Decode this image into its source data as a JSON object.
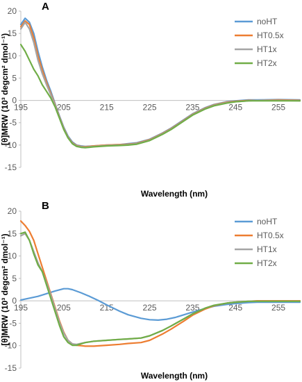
{
  "figure": {
    "panels": [
      "A",
      "B"
    ]
  },
  "chart_data": [
    {
      "type": "line",
      "panel_label": "A",
      "xlabel": "Wavelength (nm)",
      "ylabel": "[θ]MRW (10³ degcm² dmol⁻¹)",
      "xlim": [
        195,
        260
      ],
      "ylim": [
        -15,
        20
      ],
      "x_ticks": [
        195,
        205,
        215,
        225,
        235,
        245,
        255
      ],
      "y_ticks": [
        20,
        15,
        10,
        5,
        0,
        -5,
        -10,
        -15
      ],
      "grid": false,
      "legend_position": "top-right",
      "series": [
        {
          "name": "noHT",
          "color": "#5B9BD5",
          "x": [
            195,
            196,
            197,
            198,
            199,
            200,
            201,
            202,
            203,
            204,
            205,
            206,
            207,
            208,
            209,
            210,
            212,
            215,
            218,
            220,
            222,
            225,
            228,
            230,
            233,
            235,
            238,
            240,
            243,
            245,
            248,
            250,
            255,
            260
          ],
          "y": [
            17.0,
            18.4,
            17.5,
            15.0,
            11.0,
            7.5,
            4.5,
            2.0,
            -0.8,
            -3.5,
            -6.0,
            -8.0,
            -9.3,
            -10.0,
            -10.2,
            -10.3,
            -10.2,
            -10.0,
            -9.9,
            -9.7,
            -9.5,
            -8.7,
            -7.3,
            -6.2,
            -4.3,
            -3.0,
            -1.6,
            -0.9,
            -0.3,
            -0.1,
            0.1,
            0.1,
            0.2,
            0.1
          ]
        },
        {
          "name": "HT0.5x",
          "color": "#ED7D31",
          "x": [
            195,
            196,
            197,
            198,
            199,
            200,
            201,
            202,
            203,
            204,
            205,
            206,
            207,
            208,
            209,
            210,
            212,
            215,
            218,
            220,
            222,
            225,
            228,
            230,
            233,
            235,
            238,
            240,
            243,
            245,
            248,
            250,
            255,
            260
          ],
          "y": [
            16.5,
            17.8,
            17.0,
            14.0,
            10.0,
            6.8,
            4.0,
            1.5,
            -1.0,
            -3.7,
            -6.2,
            -8.2,
            -9.5,
            -10.1,
            -10.3,
            -10.4,
            -10.2,
            -10.0,
            -9.9,
            -9.8,
            -9.6,
            -8.8,
            -7.4,
            -6.3,
            -4.4,
            -3.1,
            -1.7,
            -1.0,
            -0.4,
            -0.2,
            0.0,
            0.0,
            0.1,
            0.0
          ]
        },
        {
          "name": "HT1x",
          "color": "#A5A5A5",
          "x": [
            195,
            196,
            197,
            198,
            199,
            200,
            201,
            202,
            203,
            204,
            205,
            206,
            207,
            208,
            209,
            210,
            212,
            215,
            218,
            220,
            222,
            225,
            228,
            230,
            233,
            235,
            238,
            240,
            243,
            245,
            248,
            250,
            255,
            260
          ],
          "y": [
            16.0,
            17.5,
            16.0,
            13.0,
            9.0,
            6.0,
            3.5,
            1.2,
            -1.2,
            -3.8,
            -6.3,
            -8.3,
            -9.6,
            -10.2,
            -10.4,
            -10.5,
            -10.3,
            -10.1,
            -10.0,
            -9.9,
            -9.7,
            -8.9,
            -7.5,
            -6.4,
            -4.5,
            -3.2,
            -1.8,
            -1.1,
            -0.5,
            -0.3,
            -0.1,
            0.0,
            0.0,
            -0.1
          ]
        },
        {
          "name": "HT2x",
          "color": "#70AD47",
          "x": [
            195,
            196,
            197,
            198,
            199,
            200,
            201,
            202,
            203,
            204,
            205,
            206,
            207,
            208,
            209,
            210,
            212,
            215,
            218,
            220,
            222,
            225,
            228,
            230,
            233,
            235,
            238,
            240,
            243,
            245,
            248,
            250,
            255,
            260
          ],
          "y": [
            12.5,
            11.0,
            9.0,
            7.0,
            5.5,
            3.5,
            2.0,
            0.5,
            -1.5,
            -4.0,
            -6.5,
            -8.4,
            -9.7,
            -10.3,
            -10.5,
            -10.6,
            -10.4,
            -10.2,
            -10.1,
            -10.0,
            -9.8,
            -9.0,
            -7.6,
            -6.5,
            -4.6,
            -3.3,
            -1.9,
            -1.2,
            -0.6,
            -0.3,
            -0.1,
            -0.1,
            -0.1,
            -0.1
          ]
        }
      ]
    },
    {
      "type": "line",
      "panel_label": "B",
      "xlabel": "Wavelength (nm)",
      "ylabel": "[θ]MRW (10³ degcm² dmol⁻¹)",
      "xlim": [
        195,
        260
      ],
      "ylim": [
        -15,
        20
      ],
      "x_ticks": [
        195,
        205,
        215,
        225,
        235,
        245,
        255
      ],
      "y_ticks": [
        20,
        15,
        10,
        5,
        0,
        -5,
        -10,
        -15
      ],
      "grid": false,
      "legend_position": "top-right",
      "series": [
        {
          "name": "noHT",
          "color": "#5B9BD5",
          "x": [
            195,
            197,
            199,
            201,
            203,
            205,
            206,
            207,
            209,
            211,
            213,
            215,
            218,
            220,
            223,
            225,
            227,
            229,
            231,
            233,
            235,
            238,
            240,
            243,
            245,
            248,
            250,
            255,
            260
          ],
          "y": [
            0.2,
            0.6,
            1.0,
            1.6,
            2.2,
            2.7,
            2.7,
            2.5,
            1.8,
            1.0,
            0.1,
            -0.9,
            -2.3,
            -3.1,
            -3.9,
            -4.2,
            -4.3,
            -4.1,
            -3.7,
            -3.1,
            -2.5,
            -1.7,
            -1.2,
            -0.8,
            -0.6,
            -0.4,
            -0.3,
            -0.3,
            -0.3
          ]
        },
        {
          "name": "HT0.5x",
          "color": "#ED7D31",
          "x": [
            195,
            196,
            197,
            198,
            199,
            200,
            201,
            202,
            203,
            204,
            205,
            206,
            207,
            208,
            209,
            210,
            212,
            215,
            218,
            220,
            223,
            225,
            228,
            230,
            233,
            235,
            238,
            240,
            243,
            245,
            248,
            250,
            255,
            260
          ],
          "y": [
            17.8,
            16.8,
            15.5,
            13.5,
            10.5,
            7.5,
            4.5,
            1.5,
            -1.5,
            -4.5,
            -7.0,
            -8.8,
            -9.6,
            -9.9,
            -10.0,
            -10.1,
            -10.1,
            -9.9,
            -9.7,
            -9.5,
            -9.3,
            -8.8,
            -7.4,
            -6.3,
            -4.5,
            -3.2,
            -1.8,
            -1.1,
            -0.5,
            -0.3,
            -0.1,
            0.0,
            0.0,
            0.0
          ]
        },
        {
          "name": "HT1x",
          "color": "#A5A5A5",
          "x": [
            195,
            196,
            197,
            198,
            199,
            200,
            201,
            202,
            203,
            204,
            205,
            206,
            207,
            208,
            209,
            210,
            212,
            215,
            218,
            220,
            223,
            225,
            228,
            230,
            233,
            235,
            238,
            240,
            243,
            245,
            248,
            250,
            255,
            260
          ],
          "y": [
            14.5,
            15.0,
            13.5,
            11.0,
            8.5,
            6.5,
            4.0,
            1.2,
            -1.8,
            -4.8,
            -7.2,
            -8.8,
            -9.6,
            -9.7,
            -9.5,
            -9.3,
            -9.0,
            -8.8,
            -8.6,
            -8.5,
            -8.3,
            -7.8,
            -6.6,
            -5.6,
            -4.0,
            -2.9,
            -1.6,
            -1.0,
            -0.5,
            -0.3,
            -0.1,
            -0.1,
            -0.1,
            -0.1
          ]
        },
        {
          "name": "HT2x",
          "color": "#70AD47",
          "x": [
            195,
            196,
            197,
            198,
            199,
            200,
            201,
            202,
            203,
            204,
            205,
            206,
            207,
            208,
            209,
            210,
            212,
            215,
            218,
            220,
            223,
            225,
            228,
            230,
            233,
            235,
            238,
            240,
            243,
            245,
            248,
            250,
            255,
            260
          ],
          "y": [
            15.0,
            15.3,
            13.5,
            10.5,
            8.0,
            6.5,
            3.5,
            0.5,
            -2.5,
            -5.5,
            -8.0,
            -9.3,
            -9.9,
            -9.9,
            -9.6,
            -9.3,
            -9.0,
            -8.8,
            -8.6,
            -8.5,
            -8.3,
            -7.8,
            -6.6,
            -5.6,
            -4.0,
            -2.9,
            -1.6,
            -1.0,
            -0.5,
            -0.3,
            -0.1,
            -0.1,
            -0.1,
            -0.1
          ]
        }
      ]
    }
  ]
}
